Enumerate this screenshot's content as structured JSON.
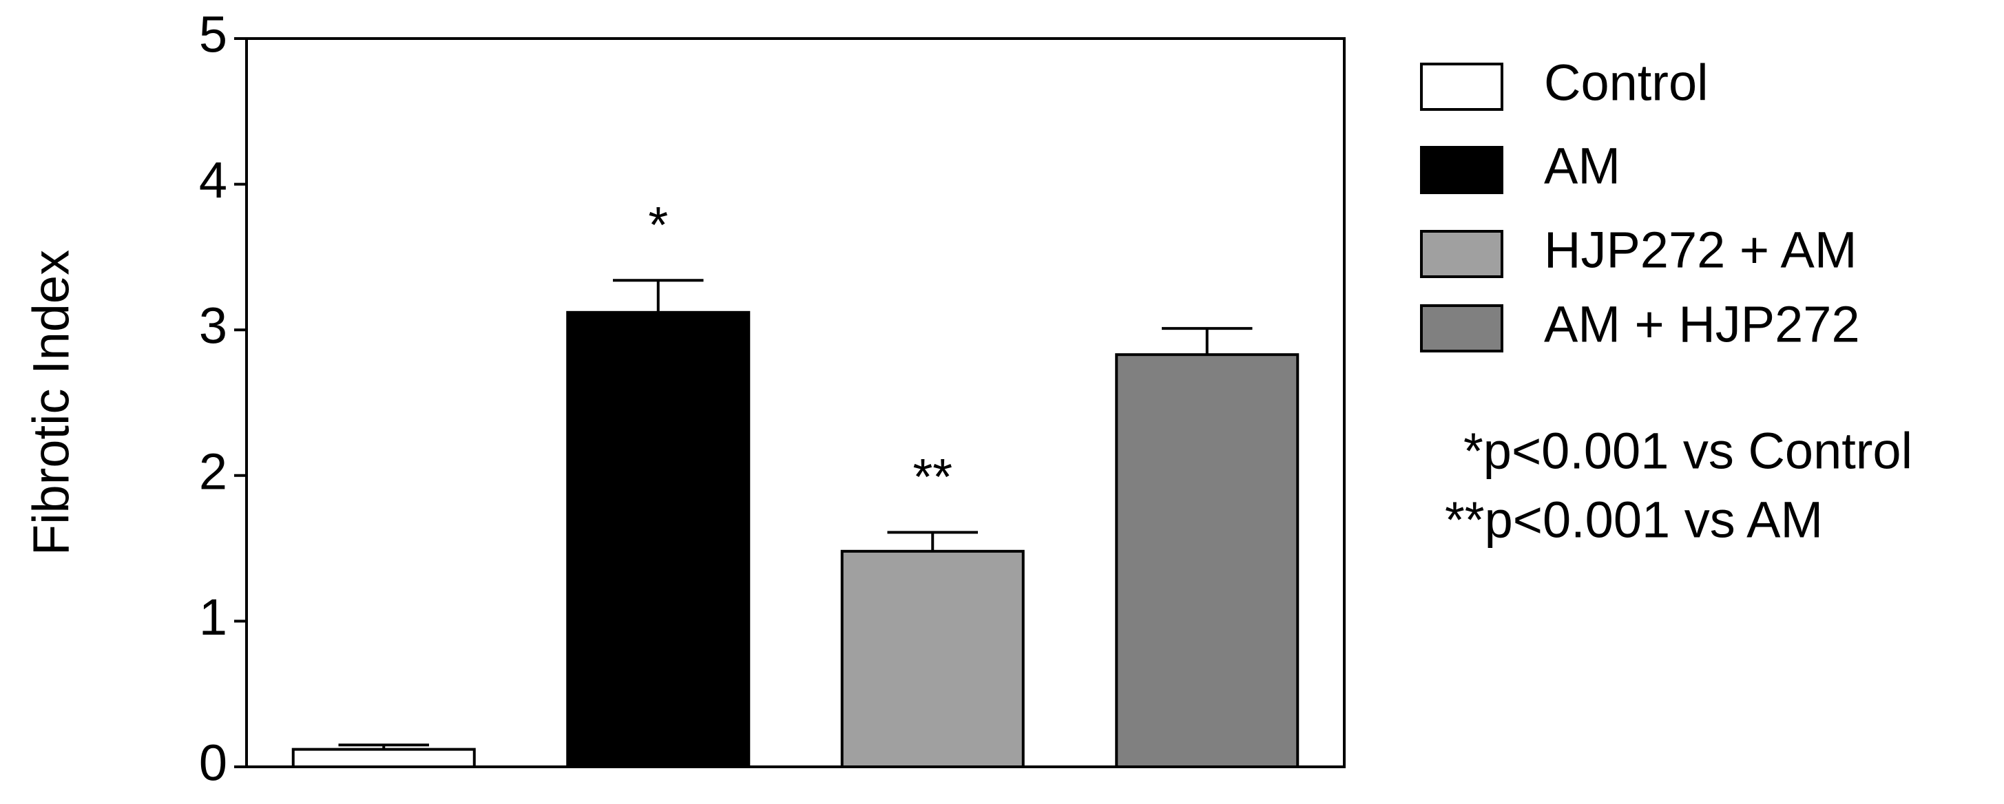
{
  "chart_data": {
    "type": "bar",
    "y_label": "Fibrotic Index",
    "categories": [
      null
    ],
    "series": [
      {
        "name": "Control",
        "color": "#ffffff",
        "values": [
          0.12
        ],
        "errors": [
          0.03
        ]
      },
      {
        "name": "AM",
        "color": "#000000",
        "values": [
          3.12
        ],
        "errors": [
          0.22
        ],
        "annotation": "*"
      },
      {
        "name": "HJP272 + AM",
        "color": "#a0a0a0",
        "values": [
          1.48
        ],
        "errors": [
          0.13
        ],
        "annotation": "**"
      },
      {
        "name": "AM + HJP272",
        "color": "#808080",
        "values": [
          2.83
        ],
        "errors": [
          0.18
        ]
      }
    ],
    "notes": [
      "*p<0.001 vs Control",
      "**p<0.001 vs AM"
    ],
    "ylim": [
      0,
      5
    ],
    "yticks": [
      0,
      1,
      2,
      3,
      4,
      5
    ],
    "grid": false,
    "legend": "right"
  }
}
